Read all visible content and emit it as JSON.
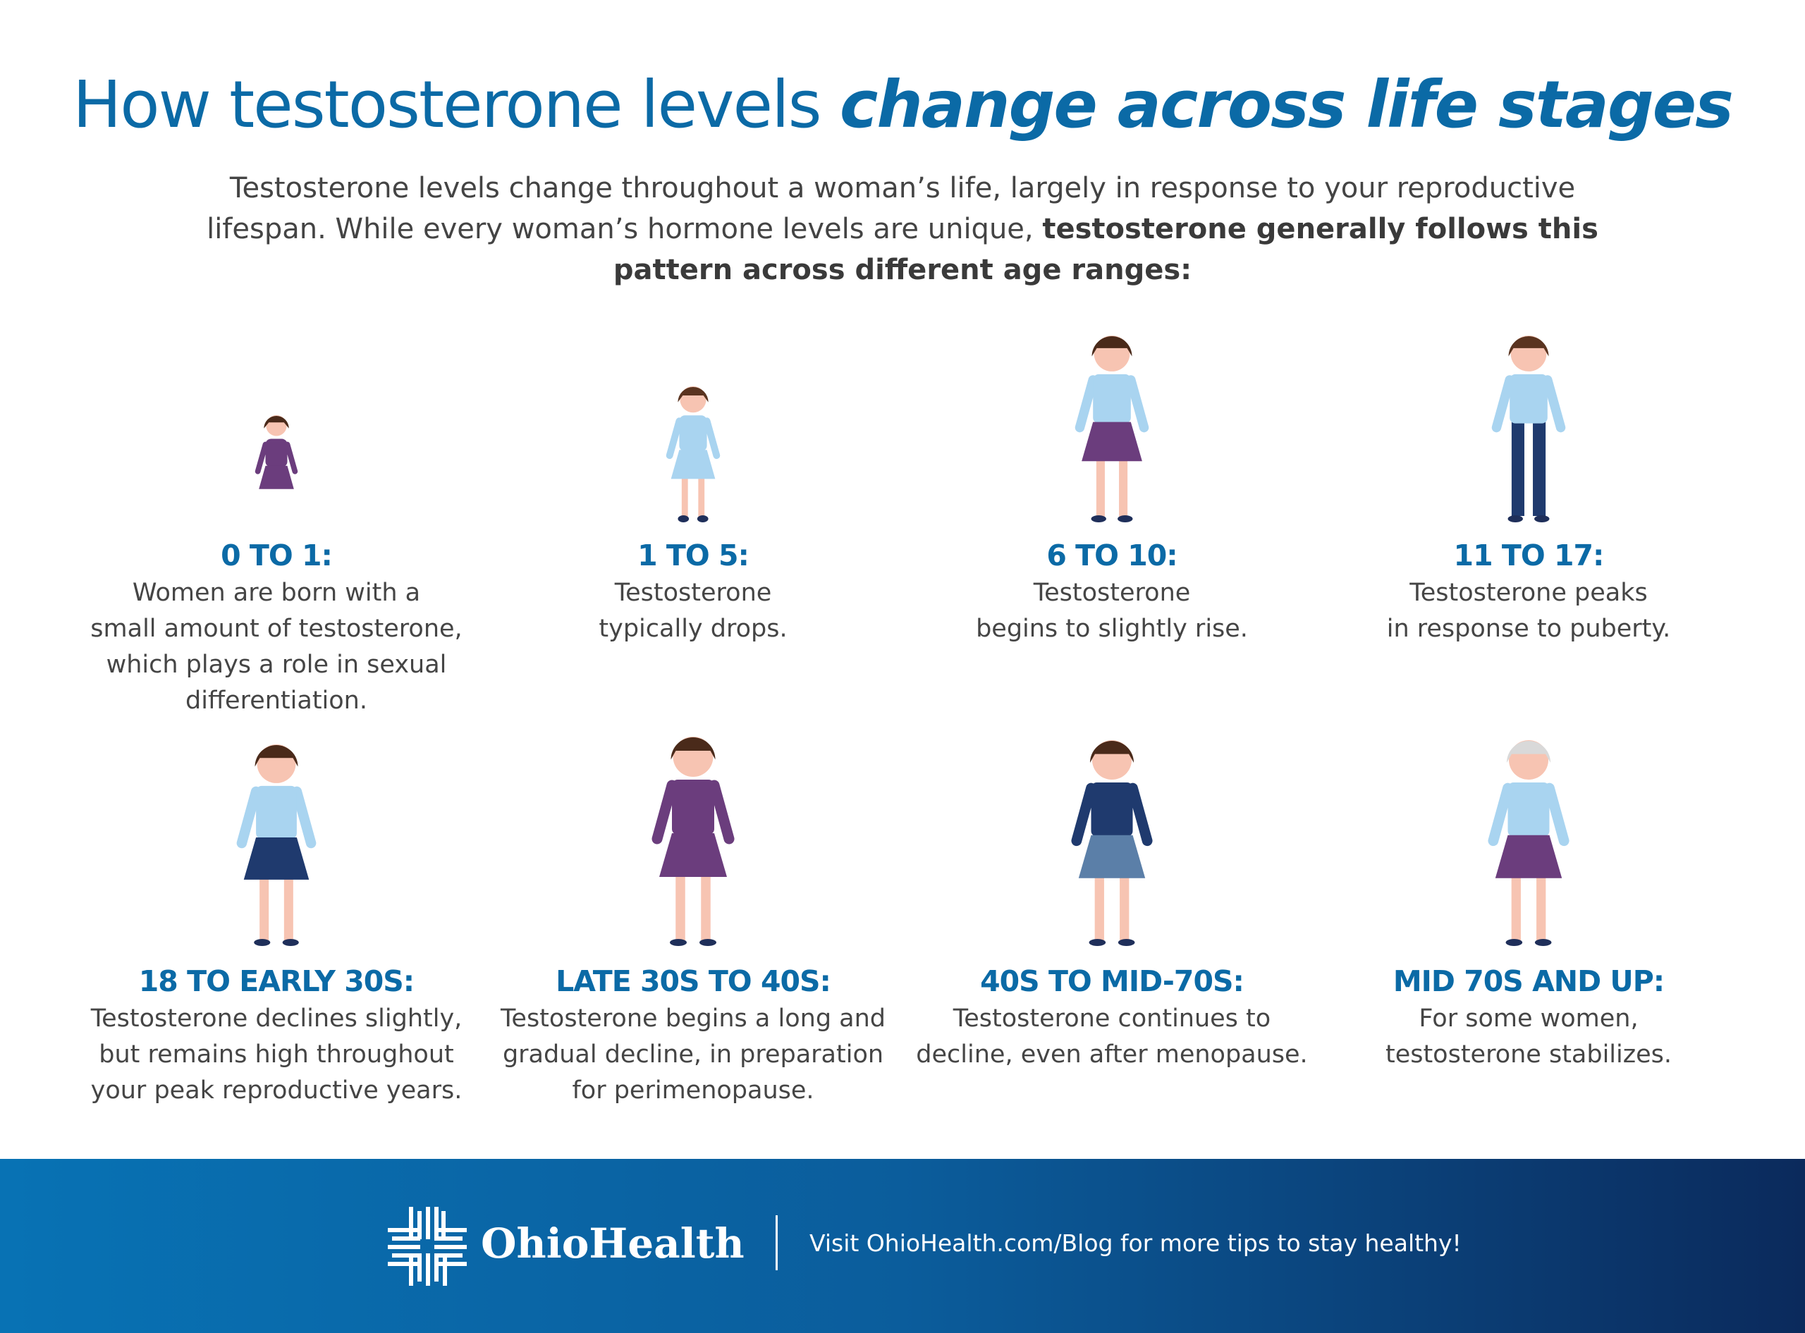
{
  "header": {
    "title": "How testosterone levels",
    "title_emphasis": "change across life stages",
    "intro": "Testosterone levels change throughout a woman’s life, largely in response to your reproductive lifespan. While every woman’s hormone levels are unique,",
    "intro_emphasis": "testosterone generally follows this pattern across different age ranges:"
  },
  "stages": [
    {
      "label": "0 TO 1:",
      "lines": [
        "Women are born with a",
        "small amount of testosterone,",
        "which plays a role in sexual",
        "differentiation."
      ]
    },
    {
      "label": "1 TO 5:",
      "lines": [
        "Testosterone",
        "typically drops."
      ]
    },
    {
      "label": "6 TO 10:",
      "lines": [
        "Testosterone",
        "begins to slightly rise."
      ]
    },
    {
      "label": "11 TO 17:",
      "lines": [
        "Testosterone peaks",
        "in response to puberty."
      ]
    },
    {
      "label": "18 TO EARLY 30S:",
      "lines": [
        "Testosterone declines slightly,",
        "but remains high throughout",
        "your peak reproductive years."
      ]
    },
    {
      "label": "LATE 30S TO 40S:",
      "lines": [
        "Testosterone begins a long and",
        "gradual decline, in preparation",
        "for perimenopause."
      ]
    },
    {
      "label": "40S TO MID-70S:",
      "lines": [
        "Testosterone continues to",
        "decline, even after menopause."
      ]
    },
    {
      "label": "MID 70S AND UP:",
      "lines": [
        "For some women,",
        "testosterone stabilizes."
      ]
    }
  ],
  "footer": {
    "brand": "OhioHealth",
    "message": "Visit OhioHealth.com/Blog for more tips to stay healthy!"
  }
}
